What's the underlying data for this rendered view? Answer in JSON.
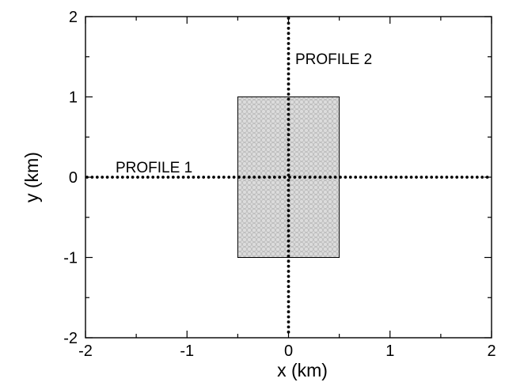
{
  "axes": {
    "x_label": "x (km)",
    "y_label": "y (km)",
    "xlim": [
      -2,
      2
    ],
    "ylim": [
      -2,
      2
    ],
    "x_ticks": [
      {
        "value": -2,
        "label": "-2"
      },
      {
        "value": -1,
        "label": "-1"
      },
      {
        "value": 0,
        "label": "0"
      },
      {
        "value": 1,
        "label": "1"
      },
      {
        "value": 2,
        "label": "2"
      }
    ],
    "y_ticks": [
      {
        "value": -2,
        "label": "-2"
      },
      {
        "value": -1,
        "label": "-1"
      },
      {
        "value": 0,
        "label": "0"
      },
      {
        "value": 1,
        "label": "1"
      },
      {
        "value": 2,
        "label": "2"
      }
    ]
  },
  "region": {
    "x_range": [
      -0.5,
      0.5
    ],
    "y_range": [
      -1,
      1
    ],
    "fill_color": "#dcdcdc",
    "pattern_color": "#b4b4b4"
  },
  "profiles": [
    {
      "label": "PROFILE 1",
      "orientation": "horizontal",
      "at": 0
    },
    {
      "label": "PROFILE 2",
      "orientation": "vertical",
      "at": 0
    }
  ],
  "colors": {
    "axes": "#000000",
    "profile_dots": "#000000"
  }
}
